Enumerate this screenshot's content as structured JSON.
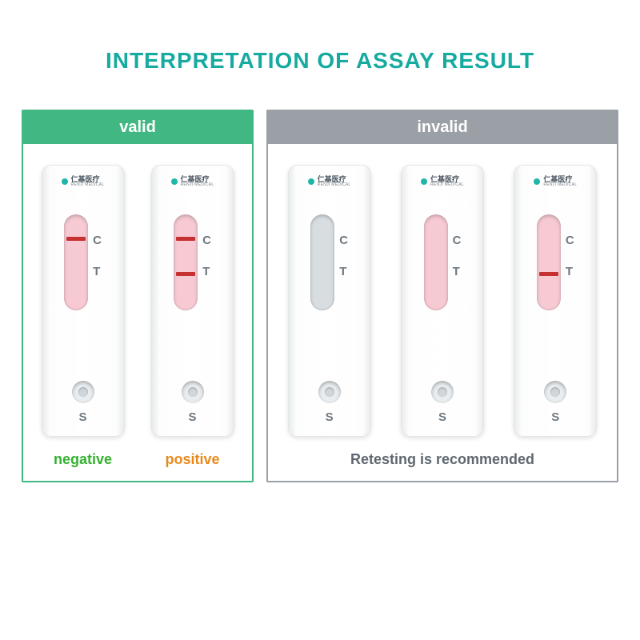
{
  "title": "INTERPRETATION OF ASSAY RESULT",
  "title_color": "#16aaa0",
  "brand_cn": "仁基医疗",
  "brand_en": "RENJI MEDICAL",
  "labels": {
    "c": "C",
    "t": "T",
    "s": "S"
  },
  "colors": {
    "valid_border": "#41b883",
    "invalid_border": "#9aa0a6",
    "line": "#c53030",
    "window_pink": "#f7c9d2",
    "window_gray": "#d7dde0",
    "negative": "#33b12f",
    "positive": "#e8891a",
    "retest": "#5f6770"
  },
  "panels": {
    "valid": {
      "header": "valid",
      "cassettes": [
        {
          "window_bg": "#f7c9d2",
          "show_c": true,
          "show_t": false,
          "result": "negative",
          "result_color": "#33b12f"
        },
        {
          "window_bg": "#f7c9d2",
          "show_c": true,
          "show_t": true,
          "result": "positive",
          "result_color": "#e8891a"
        }
      ]
    },
    "invalid": {
      "header": "invalid",
      "footer": "Retesting is recommended",
      "cassettes": [
        {
          "window_bg": "#d7dde0",
          "show_c": false,
          "show_t": false
        },
        {
          "window_bg": "#f7c9d2",
          "show_c": false,
          "show_t": false
        },
        {
          "window_bg": "#f7c9d2",
          "show_c": false,
          "show_t": true
        }
      ]
    }
  }
}
